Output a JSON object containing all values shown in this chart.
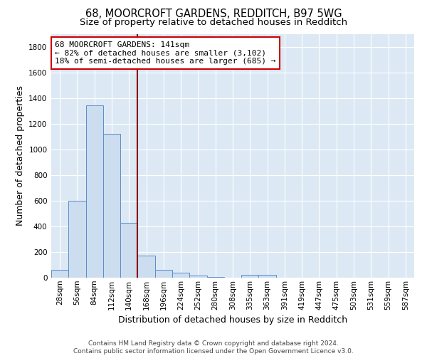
{
  "title_line1": "68, MOORCROFT GARDENS, REDDITCH, B97 5WG",
  "title_line2": "Size of property relative to detached houses in Redditch",
  "xlabel": "Distribution of detached houses by size in Redditch",
  "ylabel": "Number of detached properties",
  "categories": [
    "28sqm",
    "56sqm",
    "84sqm",
    "112sqm",
    "140sqm",
    "168sqm",
    "196sqm",
    "224sqm",
    "252sqm",
    "280sqm",
    "308sqm",
    "335sqm",
    "363sqm",
    "391sqm",
    "419sqm",
    "447sqm",
    "475sqm",
    "503sqm",
    "531sqm",
    "559sqm",
    "587sqm"
  ],
  "values": [
    60,
    600,
    1340,
    1120,
    425,
    170,
    60,
    40,
    15,
    5,
    0,
    20,
    20,
    0,
    0,
    0,
    0,
    0,
    0,
    0,
    0
  ],
  "bar_color": "#ccddf0",
  "bar_edge_color": "#5b8dc8",
  "vline_x": 4.5,
  "vline_color": "#8b0000",
  "annotation_text": "68 MOORCROFT GARDENS: 141sqm\n← 82% of detached houses are smaller (3,102)\n18% of semi-detached houses are larger (685) →",
  "annotation_box_color": "#ffffff",
  "annotation_box_edge": "#cc0000",
  "ylim": [
    0,
    1900
  ],
  "yticks": [
    0,
    200,
    400,
    600,
    800,
    1000,
    1200,
    1400,
    1600,
    1800
  ],
  "fig_background_color": "#ffffff",
  "plot_bg_color": "#dce9f5",
  "grid_color": "#ffffff",
  "footer_text": "Contains HM Land Registry data © Crown copyright and database right 2024.\nContains public sector information licensed under the Open Government Licence v3.0.",
  "title_fontsize": 10.5,
  "subtitle_fontsize": 9.5,
  "axis_label_fontsize": 9,
  "tick_fontsize": 7.5,
  "annotation_fontsize": 8,
  "footer_fontsize": 6.5
}
